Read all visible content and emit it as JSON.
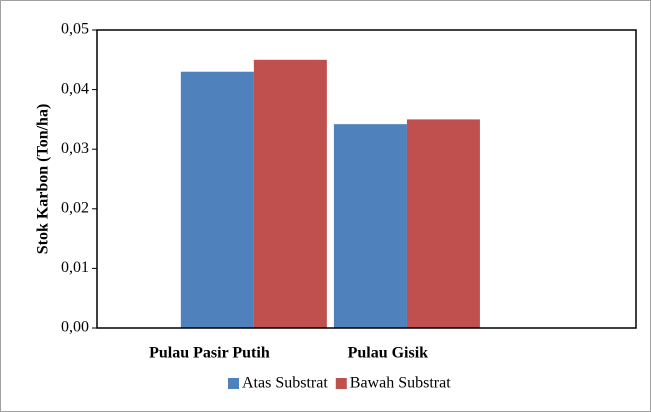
{
  "chart_data": {
    "type": "bar",
    "y_label": "Stok Karbon (Ton/ha)",
    "categories": [
      "Pulau Pasir Putih",
      "Pulau Gisik"
    ],
    "series": [
      {
        "name": "Atas Substrat",
        "color": "#4f81bd",
        "values": [
          0.043,
          0.0342
        ]
      },
      {
        "name": "Bawah Substrat",
        "color": "#c0504d",
        "values": [
          0.045,
          0.035
        ]
      }
    ],
    "ylim": [
      0,
      0.05
    ],
    "yticks": [
      {
        "value": 0,
        "label": "0,00"
      },
      {
        "value": 0.01,
        "label": "0,01"
      },
      {
        "value": 0.02,
        "label": "0,02"
      },
      {
        "value": 0.03,
        "label": "0,03"
      },
      {
        "value": 0.04,
        "label": "0,04"
      },
      {
        "value": 0.05,
        "label": "0,05"
      }
    ],
    "legend": "bottom"
  }
}
